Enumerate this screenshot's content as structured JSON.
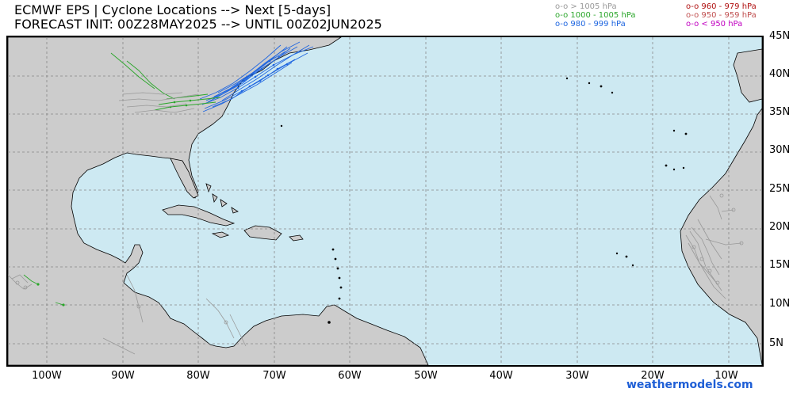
{
  "header": {
    "title_line1": "ECMWF EPS | Cyclone Locations --> Next [5-days]",
    "title_line2": "FORECAST INIT: 00Z28MAY2025 --> UNTIL 00Z02JUN2025"
  },
  "legend": [
    {
      "label": "o-o > 1005 hPa",
      "color": "#999999"
    },
    {
      "label": "o-o 1000 - 1005 hPa",
      "color": "#2aa62a"
    },
    {
      "label": "o-o 980 - 999 hPa",
      "color": "#1f66e0"
    },
    {
      "label": "o-o 960 - 979 hPa",
      "color": "#b01010"
    },
    {
      "label": "o-o 950 - 959 hPa",
      "color": "#c05050"
    },
    {
      "label": "o-o < 950 hPa",
      "color": "#c000c0"
    }
  ],
  "latitude_labels": [
    "45N",
    "40N",
    "35N",
    "30N",
    "25N",
    "20N",
    "15N",
    "10N",
    "5N"
  ],
  "longitude_labels": [
    "100W",
    "90W",
    "80W",
    "70W",
    "60W",
    "50W",
    "40W",
    "30W",
    "20W",
    "10W"
  ],
  "credit": "weathermodels.com",
  "colors": {
    "ocean": "#cde9f2",
    "land": "#cccccc",
    "grid": "#888888"
  }
}
